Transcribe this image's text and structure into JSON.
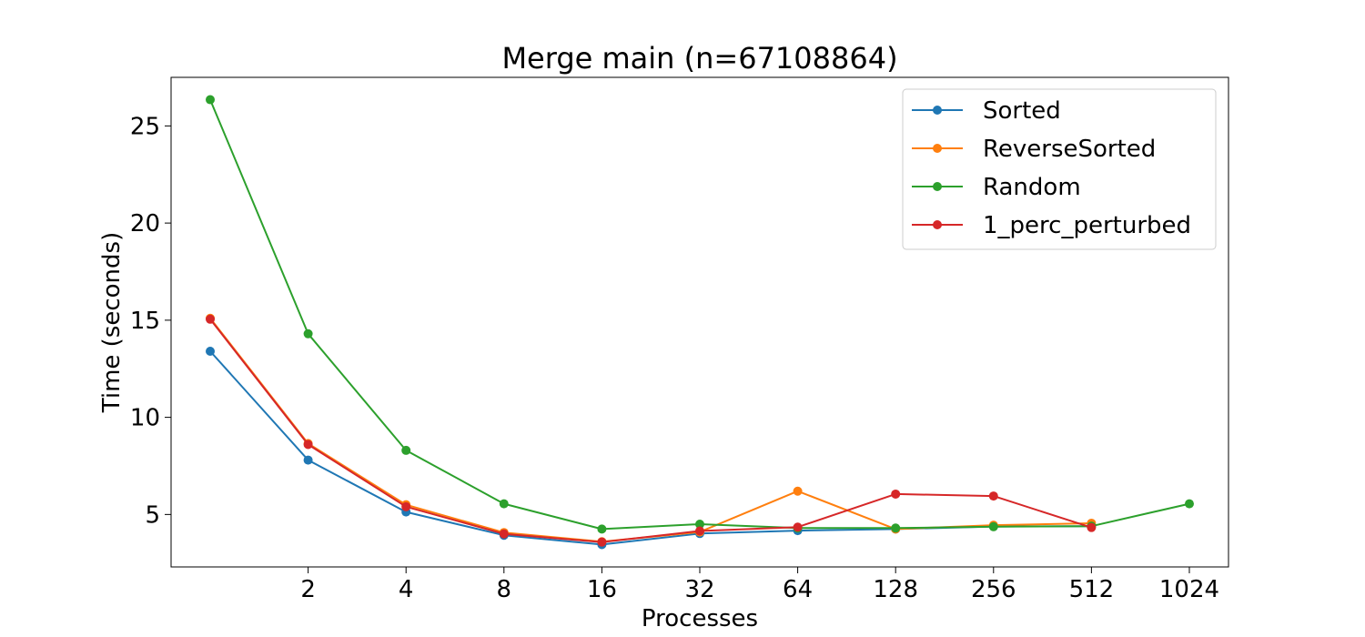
{
  "chart_data": {
    "type": "line",
    "title": "Merge main (n=67108864)",
    "xlabel": "Processes",
    "ylabel": "Time (seconds)",
    "x_scale": "log2",
    "x_ticks": [
      2,
      4,
      8,
      16,
      32,
      64,
      128,
      256,
      512,
      1024
    ],
    "y_ticks": [
      5,
      10,
      15,
      20,
      25
    ],
    "xlim": [
      0.758,
      1351
    ],
    "ylim": [
      2.3,
      27.5
    ],
    "grid": false,
    "legend_position": "top-right",
    "series": [
      {
        "name": "Sorted",
        "color": "#1f77b4",
        "x": [
          1,
          2,
          4,
          8,
          16,
          32,
          64,
          128,
          256,
          512
        ],
        "y": [
          13.4,
          7.8,
          5.13,
          3.93,
          3.45,
          4.02,
          4.17,
          4.25,
          4.38,
          4.4
        ]
      },
      {
        "name": "ReverseSorted",
        "color": "#ff7f0e",
        "x": [
          1,
          2,
          4,
          8,
          16,
          32,
          64,
          128,
          256,
          512
        ],
        "y": [
          15.1,
          8.65,
          5.5,
          4.07,
          3.6,
          4.1,
          6.2,
          4.25,
          4.45,
          4.55
        ]
      },
      {
        "name": "Random",
        "color": "#2ca02c",
        "x": [
          1,
          2,
          4,
          8,
          16,
          32,
          64,
          128,
          256,
          512,
          1024
        ],
        "y": [
          26.35,
          14.3,
          8.3,
          5.55,
          4.25,
          4.5,
          4.3,
          4.3,
          4.37,
          4.4,
          5.55
        ]
      },
      {
        "name": "1_perc_perturbed",
        "color": "#d62728",
        "x": [
          1,
          2,
          4,
          8,
          16,
          32,
          64,
          128,
          256,
          512
        ],
        "y": [
          15.05,
          8.6,
          5.4,
          4.0,
          3.58,
          4.15,
          4.35,
          6.05,
          5.95,
          4.33
        ]
      }
    ]
  }
}
